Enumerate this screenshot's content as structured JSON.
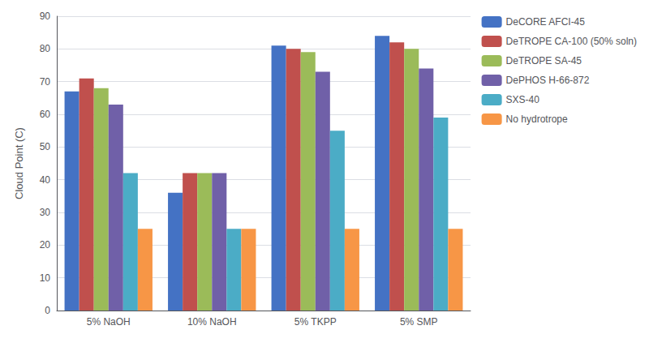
{
  "chart_data": {
    "type": "bar",
    "categories": [
      "5% NaOH",
      "10% NaOH",
      "5% TKPP",
      "5% SMP"
    ],
    "series": [
      {
        "name": "DeCORE AFCI-45",
        "color": "#4472C4",
        "values": [
          67,
          36,
          81,
          84
        ]
      },
      {
        "name": "DeTROPE CA-100 (50% soln)",
        "color": "#C0504D",
        "values": [
          71,
          42,
          80,
          82
        ]
      },
      {
        "name": "DeTROPE SA-45",
        "color": "#9BBB59",
        "values": [
          68,
          42,
          79,
          80
        ]
      },
      {
        "name": "DePHOS H-66-872",
        "color": "#7060A8",
        "values": [
          63,
          42,
          73,
          74
        ]
      },
      {
        "name": "SXS-40",
        "color": "#4BACC6",
        "values": [
          42,
          25,
          55,
          59
        ]
      },
      {
        "name": "No hydrotrope",
        "color": "#F79646",
        "values": [
          25,
          25,
          25,
          25
        ]
      }
    ],
    "ylabel": "Cloud Point (C)",
    "ylim": [
      0,
      90
    ],
    "yticks": [
      0,
      10,
      20,
      30,
      40,
      50,
      60,
      70,
      80,
      90
    ],
    "grid": true,
    "legend": "right"
  }
}
